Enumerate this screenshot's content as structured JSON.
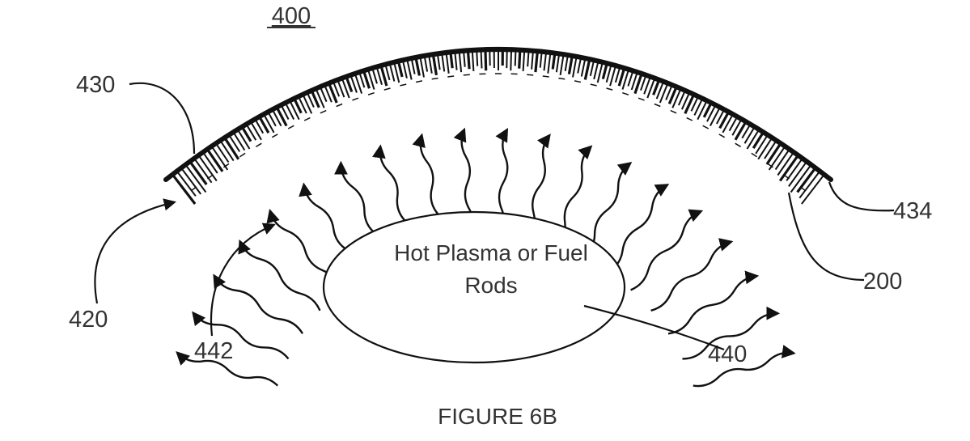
{
  "figure": {
    "ref_400": "400",
    "ref_430": "430",
    "ref_434": "434",
    "ref_420": "420",
    "ref_200": "200",
    "ref_442": "442",
    "ref_440": "440",
    "core_line1": "Hot Plasma or Fuel",
    "core_line2": "Rods",
    "caption": "FIGURE 6B"
  },
  "colors": {
    "ink": "#111111",
    "text": "#333333",
    "background": "#ffffff"
  }
}
